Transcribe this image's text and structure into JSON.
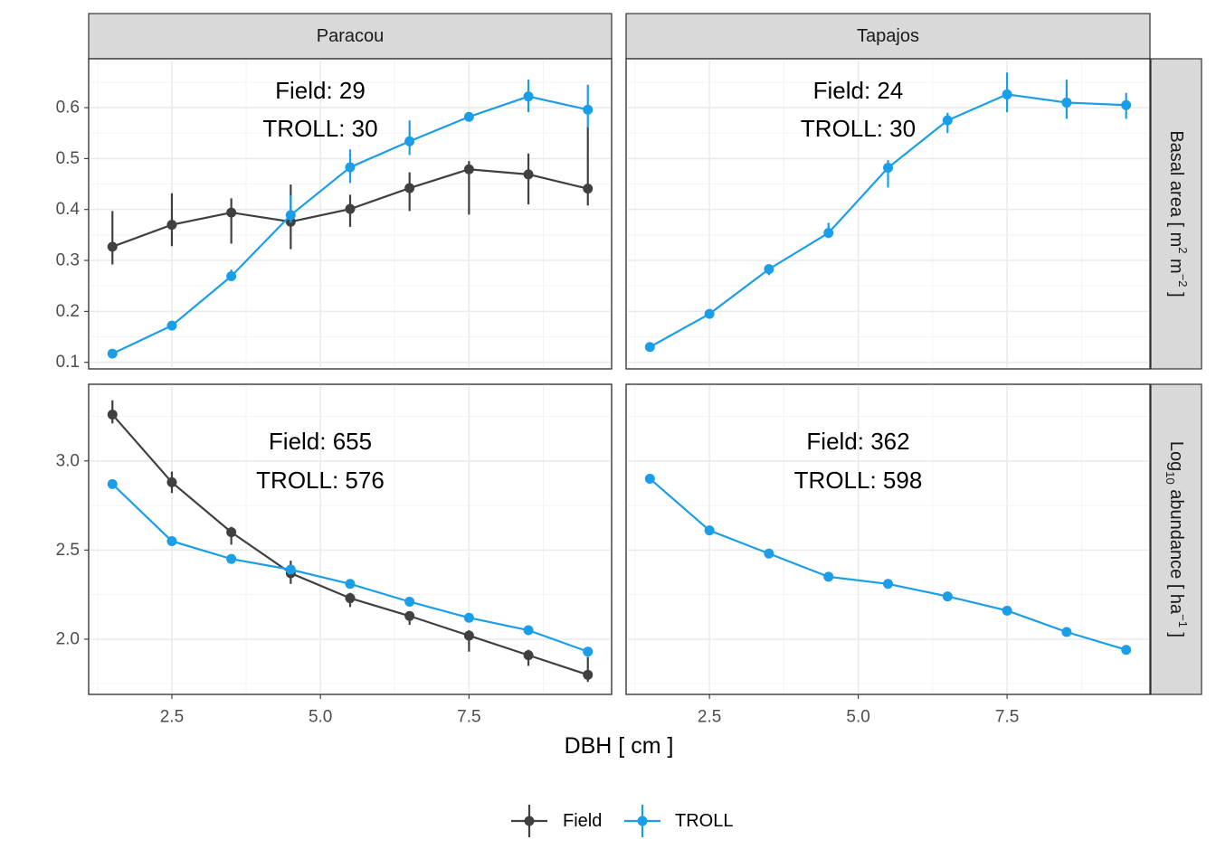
{
  "chart_data": {
    "type": "line",
    "x_axis": {
      "label": "DBH [ cm ]",
      "ticks": [
        2.5,
        5.0,
        7.5
      ],
      "tick_labels": [
        "2.5",
        "5.0",
        "7.5"
      ],
      "range": [
        1.1,
        9.9
      ]
    },
    "columns": [
      "Paracou",
      "Tapajos"
    ],
    "rows": [
      {
        "key": "basal",
        "label": "Basal area [ m² m⁻² ]",
        "label_base": "Basal area [ m",
        "label_sup1": "2",
        "label_mid": " m",
        "label_sup2": "−2",
        "label_end": " ]",
        "y_range": [
          0.087,
          0.696
        ],
        "y_ticks": [
          0.1,
          0.2,
          0.3,
          0.4,
          0.5,
          0.6
        ],
        "y_tick_labels": [
          "0.1",
          "0.2",
          "0.3",
          "0.4",
          "0.5",
          "0.6"
        ]
      },
      {
        "key": "abundance",
        "label": "Log₁₀ abundance [ ha⁻¹ ]",
        "label_base": "Log",
        "label_sub": "10",
        "label_mid": " abundance [ ha",
        "label_sup": "−1",
        "label_end": " ]",
        "y_range": [
          1.69,
          3.43
        ],
        "y_ticks": [
          2.0,
          2.5,
          3.0
        ],
        "y_tick_labels": [
          "2.0",
          "2.5",
          "3.0"
        ]
      }
    ],
    "legend": {
      "position": "bottom",
      "items": [
        {
          "name": "Field",
          "color": "#404040"
        },
        {
          "name": "TROLL",
          "color": "#1a9ee8"
        }
      ]
    },
    "panels": [
      {
        "site": "Paracou",
        "row": "basal",
        "annotation": {
          "line1": "Field: 29",
          "line2": "TROLL: 30"
        },
        "series": [
          {
            "name": "Field",
            "x": [
              1.5,
              2.5,
              3.5,
              4.5,
              5.5,
              6.5,
              7.5,
              8.5,
              9.5
            ],
            "y": [
              0.327,
              0.37,
              0.394,
              0.376,
              0.401,
              0.442,
              0.479,
              0.469,
              0.441
            ],
            "lo": [
              0.292,
              0.328,
              0.333,
              0.322,
              0.366,
              0.397,
              0.39,
              0.41,
              0.408
            ],
            "hi": [
              0.397,
              0.432,
              0.422,
              0.449,
              0.429,
              0.473,
              0.495,
              0.51,
              0.563
            ]
          },
          {
            "name": "TROLL",
            "x": [
              1.5,
              2.5,
              3.5,
              4.5,
              5.5,
              6.5,
              7.5,
              8.5,
              9.5
            ],
            "y": [
              0.117,
              0.172,
              0.269,
              0.389,
              0.483,
              0.534,
              0.582,
              0.622,
              0.596
            ],
            "lo": [
              0.117,
              0.172,
              0.26,
              0.374,
              0.452,
              0.507,
              0.576,
              0.591,
              0.561
            ],
            "hi": [
              0.117,
              0.172,
              0.282,
              0.428,
              0.518,
              0.575,
              0.588,
              0.655,
              0.645
            ]
          }
        ]
      },
      {
        "site": "Tapajos",
        "row": "basal",
        "annotation": {
          "line1": "Field: 24",
          "line2": "TROLL: 30"
        },
        "series": [
          {
            "name": "TROLL",
            "x": [
              1.5,
              2.5,
              3.5,
              4.5,
              5.5,
              6.5,
              7.5,
              8.5,
              9.5
            ],
            "y": [
              0.13,
              0.195,
              0.283,
              0.354,
              0.482,
              0.575,
              0.626,
              0.61,
              0.605
            ],
            "lo": [
              0.13,
              0.195,
              0.271,
              0.344,
              0.443,
              0.55,
              0.591,
              0.578,
              0.578
            ],
            "hi": [
              0.13,
              0.195,
              0.291,
              0.374,
              0.497,
              0.59,
              0.669,
              0.655,
              0.629
            ]
          }
        ]
      },
      {
        "site": "Paracou",
        "row": "abundance",
        "annotation": {
          "line1": "Field: 655",
          "line2": "TROLL: 576"
        },
        "series": [
          {
            "name": "Field",
            "x": [
              1.5,
              2.5,
              3.5,
              4.5,
              5.5,
              6.5,
              7.5,
              8.5,
              9.5
            ],
            "y": [
              3.26,
              2.88,
              2.6,
              2.37,
              2.23,
              2.13,
              2.02,
              1.91,
              1.8
            ],
            "lo": [
              3.21,
              2.82,
              2.53,
              2.31,
              2.18,
              2.08,
              1.93,
              1.85,
              1.76
            ],
            "hi": [
              3.34,
              2.94,
              2.63,
              2.44,
              2.26,
              2.15,
              2.05,
              1.94,
              1.9
            ]
          },
          {
            "name": "TROLL",
            "x": [
              1.5,
              2.5,
              3.5,
              4.5,
              5.5,
              6.5,
              7.5,
              8.5,
              9.5
            ],
            "y": [
              2.87,
              2.55,
              2.45,
              2.39,
              2.31,
              2.21,
              2.12,
              2.05,
              1.93
            ],
            "lo": [
              2.87,
              2.55,
              2.45,
              2.39,
              2.31,
              2.21,
              2.12,
              2.05,
              1.93
            ],
            "hi": [
              2.87,
              2.55,
              2.45,
              2.39,
              2.31,
              2.21,
              2.12,
              2.05,
              1.93
            ]
          }
        ]
      },
      {
        "site": "Tapajos",
        "row": "abundance",
        "annotation": {
          "line1": "Field: 362",
          "line2": "TROLL: 598"
        },
        "series": [
          {
            "name": "TROLL",
            "x": [
              1.5,
              2.5,
              3.5,
              4.5,
              5.5,
              6.5,
              7.5,
              8.5,
              9.5
            ],
            "y": [
              2.9,
              2.61,
              2.48,
              2.35,
              2.31,
              2.24,
              2.16,
              2.04,
              1.94
            ],
            "lo": [
              2.9,
              2.61,
              2.48,
              2.35,
              2.31,
              2.24,
              2.16,
              2.04,
              1.94
            ],
            "hi": [
              2.9,
              2.61,
              2.48,
              2.35,
              2.31,
              2.24,
              2.16,
              2.04,
              1.94
            ]
          }
        ]
      }
    ]
  }
}
